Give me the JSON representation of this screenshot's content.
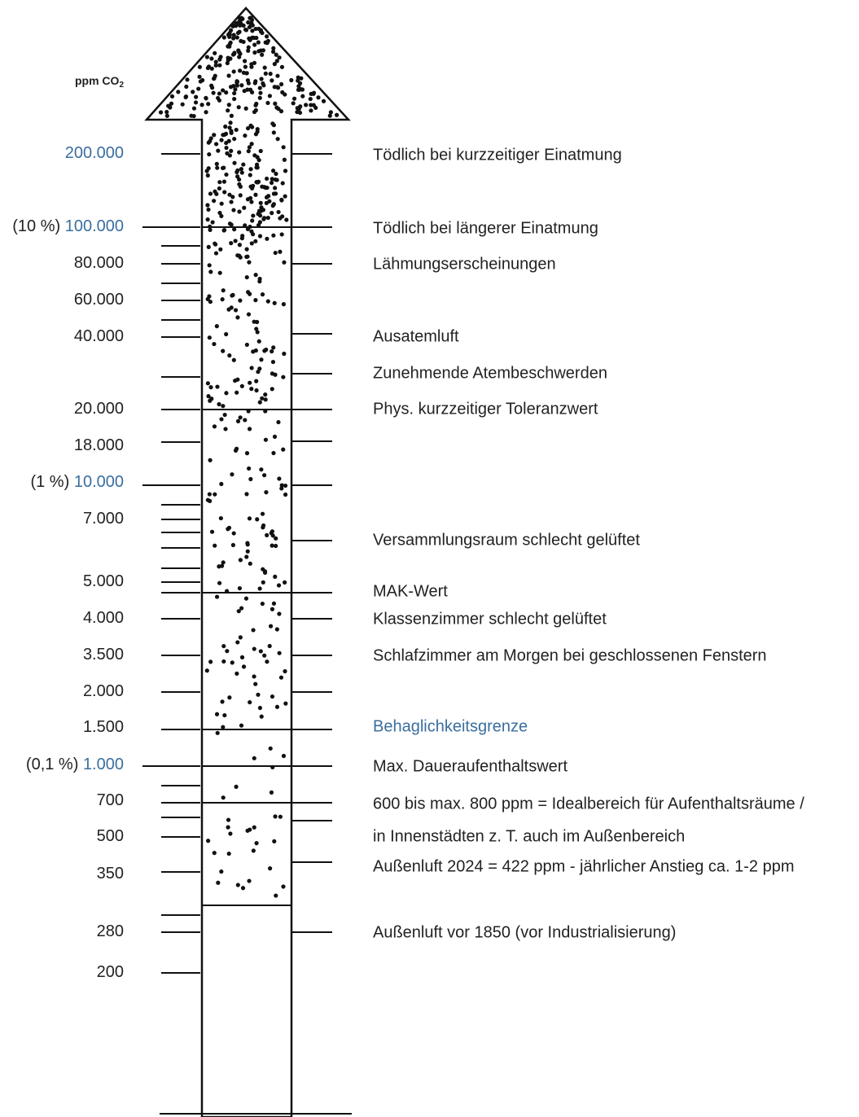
{
  "unit": {
    "base": "ppm CO",
    "sub": "2"
  },
  "left_labels": [
    {
      "value": "200.000"
    },
    {
      "prefix": "(10 %)",
      "value": "100.000"
    },
    {
      "value": "80.000"
    },
    {
      "value": "60.000"
    },
    {
      "value": "40.000"
    },
    {
      "value": "20.000"
    },
    {
      "value": "18.000"
    },
    {
      "prefix": "(1 %)",
      "value": "10.000"
    },
    {
      "value": "7.000"
    },
    {
      "value": "5.000"
    },
    {
      "value": "4.000"
    },
    {
      "value": "3.500"
    },
    {
      "value": "2.000"
    },
    {
      "value": "1.500"
    },
    {
      "prefix": "(0,1 %)",
      "value": "1.000"
    },
    {
      "value": "700"
    },
    {
      "value": "500"
    },
    {
      "value": "350"
    },
    {
      "value": "280"
    },
    {
      "value": "200"
    }
  ],
  "right_labels": [
    "Tödlich bei kurzzeitiger Einatmung",
    "Tödlich bei längerer Einatmung",
    "Lähmungserscheinungen",
    "Ausatemluft",
    "Zunehmende Atembeschwerden",
    "Phys. kurzzeitiger Toleranzwert",
    "Versammlungsraum schlecht gelüftet",
    "MAK-Wert",
    "Klassenzimmer schlecht gelüftet",
    "Schlafzimmer am Morgen bei geschlossenen Fenstern",
    "Behaglichkeitsgrenze",
    "Max. Daueraufenthaltswert",
    "600 bis max. 800 ppm = Idealbereich für Aufenthaltsräume /",
    "in Innenstädten z. T. auch im Außenbereich",
    "Außenluft 2024 = 422 ppm - jährlicher Anstieg ca. 1-2 ppm",
    "Außenluft vor 1850 (vor Industrialisierung)"
  ]
}
